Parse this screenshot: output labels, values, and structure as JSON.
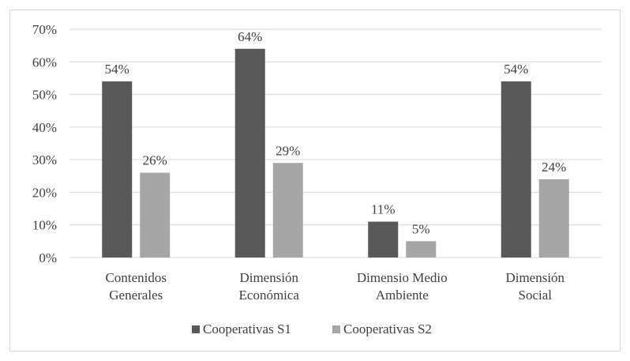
{
  "chart_data": {
    "type": "bar",
    "categories": [
      [
        "Contenidos",
        "Generales"
      ],
      [
        "Dimensión",
        "Económica"
      ],
      [
        "Dimensio Medio",
        "Ambiente"
      ],
      [
        "Dimensión",
        "Social"
      ]
    ],
    "series": [
      {
        "name": "Cooperativas S1",
        "values": [
          54,
          64,
          11,
          54
        ],
        "labels": [
          "54%",
          "64%",
          "11%",
          "54%"
        ],
        "color": "#595959"
      },
      {
        "name": "Cooperativas S2",
        "values": [
          26,
          29,
          5,
          24
        ],
        "labels": [
          "26%",
          "29%",
          "5%",
          "24%"
        ],
        "color": "#a6a6a6"
      }
    ],
    "y_ticks": [
      "0%",
      "10%",
      "20%",
      "30%",
      "40%",
      "50%",
      "60%",
      "70%"
    ],
    "ylim": [
      0,
      70
    ],
    "grid": true,
    "legend_position": "bottom"
  },
  "colors": {
    "gridline": "#d9d9d9",
    "text": "#404040"
  }
}
